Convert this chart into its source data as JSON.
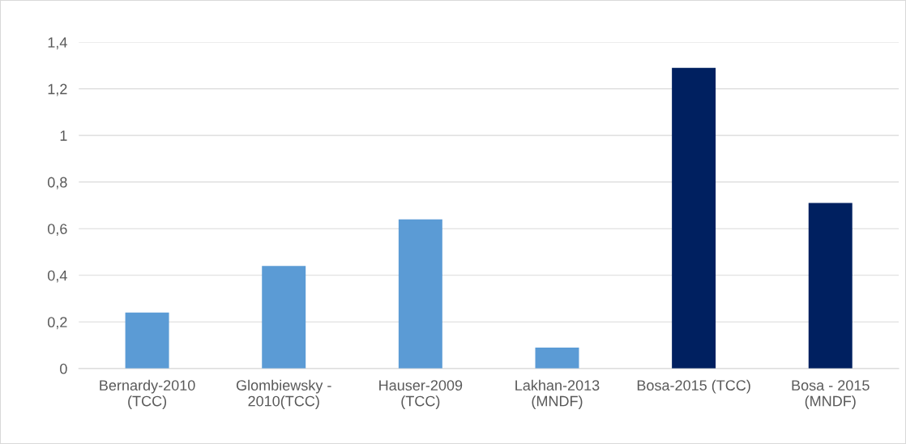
{
  "chart_data": {
    "type": "bar",
    "categories": [
      "Bernardy-2010\n(TCC)",
      "Glombiewsky -\n2010(TCC)",
      "Hauser-2009\n(TCC)",
      "Lakhan-2013\n(MNDF)",
      "Bosa-2015 (TCC)",
      "Bosa - 2015\n(MNDF)"
    ],
    "values": [
      0.24,
      0.44,
      0.64,
      0.09,
      1.29,
      0.71
    ],
    "colors": [
      "#5b9bd5",
      "#5b9bd5",
      "#5b9bd5",
      "#5b9bd5",
      "#002060",
      "#002060"
    ],
    "ylim": [
      0,
      1.4
    ],
    "yticks": [
      0,
      {
        "value": 0.2,
        "label": "0,2"
      },
      {
        "value": 0.4,
        "label": "0,4"
      },
      {
        "value": 0.6,
        "label": "0,6"
      },
      {
        "value": 0.8,
        "label": "0,8"
      },
      1,
      {
        "value": 1.2,
        "label": "1,2"
      },
      {
        "value": 1.4,
        "label": "1,4"
      }
    ],
    "grid": "y",
    "legend": false
  }
}
